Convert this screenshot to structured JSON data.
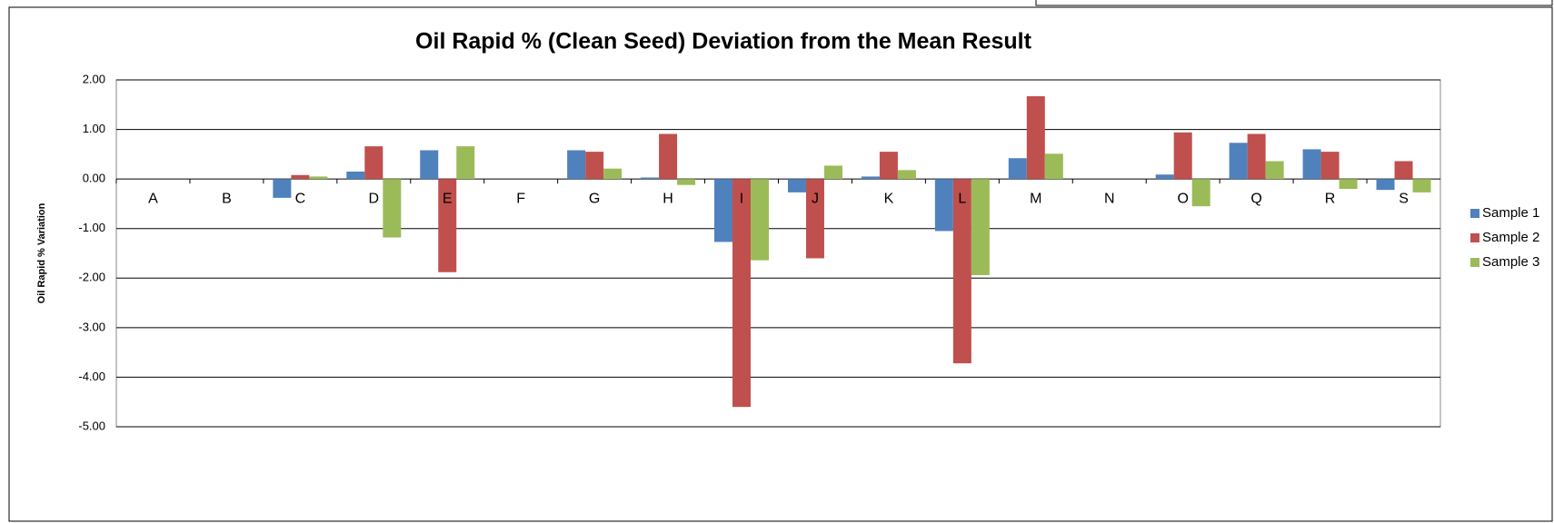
{
  "chart_data": {
    "type": "bar",
    "title": "Oil Rapid % (Clean Seed) Deviation from the Mean Result",
    "y_label": "Oil Rapid % Variation",
    "categories": [
      "A",
      "B",
      "C",
      "D",
      "E",
      "F",
      "G",
      "H",
      "I",
      "J",
      "K",
      "L",
      "M",
      "N",
      "O",
      "Q",
      "R",
      "S"
    ],
    "series": [
      {
        "name": "Sample 1",
        "color": "#4f81bd",
        "values": [
          0,
          0,
          -0.38,
          0.15,
          0.58,
          0,
          0.58,
          0.03,
          -1.27,
          -0.27,
          0.05,
          -1.05,
          0.42,
          0,
          0.09,
          0.73,
          0.6,
          -0.22
        ]
      },
      {
        "name": "Sample 2",
        "color": "#c0504d",
        "values": [
          0,
          0,
          0.08,
          0.66,
          -1.88,
          0,
          0.55,
          0.91,
          -4.6,
          -1.6,
          0.55,
          -3.72,
          1.67,
          0,
          0.94,
          0.91,
          0.55,
          0.36
        ]
      },
      {
        "name": "Sample 3",
        "color": "#9bbb59",
        "values": [
          0,
          0,
          0.05,
          -1.18,
          0.66,
          0,
          0.21,
          -0.12,
          -1.64,
          0.27,
          0.18,
          -1.94,
          0.51,
          0,
          -0.55,
          0.36,
          -0.2,
          -0.27
        ]
      }
    ],
    "ylim": [
      -5,
      2
    ],
    "yticks": [
      {
        "value": 2,
        "label": "2.00"
      },
      {
        "value": 1,
        "label": "1.00"
      },
      {
        "value": 0,
        "label": "0.00"
      },
      {
        "value": -1,
        "label": "-1.00"
      },
      {
        "value": -2,
        "label": "-2.00"
      },
      {
        "value": -3,
        "label": "-3.00"
      },
      {
        "value": -4,
        "label": "-4.00"
      },
      {
        "value": -5,
        "label": "-5.00"
      }
    ],
    "grid": true,
    "legend": "right"
  }
}
